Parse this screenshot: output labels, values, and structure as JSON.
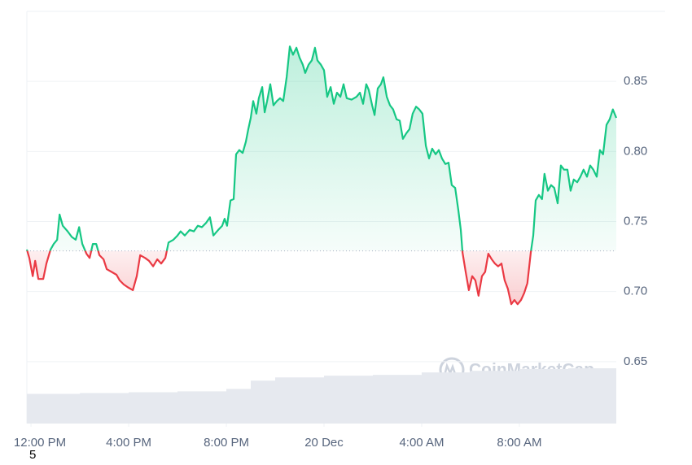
{
  "chart_data": {
    "type": "line",
    "x": [
      -0.17,
      -0.07,
      0.07,
      0.17,
      0.3,
      0.5,
      0.63,
      0.8,
      0.93,
      1.07,
      1.17,
      1.3,
      1.5,
      1.67,
      1.83,
      1.97,
      2.1,
      2.27,
      2.4,
      2.53,
      2.67,
      2.8,
      2.97,
      3.1,
      3.3,
      3.5,
      3.63,
      3.8,
      3.97,
      4.17,
      4.33,
      4.47,
      4.67,
      4.83,
      5.0,
      5.17,
      5.33,
      5.5,
      5.63,
      5.83,
      6.0,
      6.13,
      6.3,
      6.5,
      6.67,
      6.83,
      7.0,
      7.17,
      7.33,
      7.47,
      7.67,
      7.83,
      7.93,
      8.03,
      8.17,
      8.3,
      8.4,
      8.53,
      8.67,
      8.8,
      8.9,
      9.0,
      9.1,
      9.23,
      9.33,
      9.47,
      9.57,
      9.67,
      9.8,
      9.93,
      10.07,
      10.2,
      10.33,
      10.47,
      10.6,
      10.73,
      10.87,
      11.0,
      11.13,
      11.23,
      11.37,
      11.5,
      11.63,
      11.73,
      11.87,
      12.0,
      12.13,
      12.27,
      12.4,
      12.53,
      12.67,
      12.8,
      12.93,
      13.13,
      13.33,
      13.47,
      13.6,
      13.73,
      13.83,
      13.97,
      14.07,
      14.2,
      14.33,
      14.43,
      14.57,
      14.7,
      14.83,
      14.97,
      15.1,
      15.23,
      15.37,
      15.5,
      15.63,
      15.77,
      15.9,
      16.03,
      16.17,
      16.3,
      16.43,
      16.57,
      16.7,
      16.83,
      16.97,
      17.1,
      17.23,
      17.37,
      17.5,
      17.6,
      17.67,
      17.8,
      17.93,
      18.07,
      18.2,
      18.33,
      18.47,
      18.6,
      18.73,
      18.87,
      19.0,
      19.13,
      19.27,
      19.4,
      19.53,
      19.67,
      19.8,
      19.93,
      20.07,
      20.2,
      20.33,
      20.47,
      20.57,
      20.67,
      20.8,
      20.93,
      21.03,
      21.17,
      21.3,
      21.43,
      21.57,
      21.7,
      21.83,
      21.97,
      22.1,
      22.23,
      22.37,
      22.5,
      22.63,
      22.77,
      22.9,
      23.03,
      23.17,
      23.3,
      23.43,
      23.57,
      23.7,
      23.83,
      23.97
    ],
    "values": [
      0.73,
      0.724,
      0.711,
      0.722,
      0.709,
      0.709,
      0.72,
      0.73,
      0.734,
      0.737,
      0.755,
      0.747,
      0.743,
      0.739,
      0.737,
      0.746,
      0.734,
      0.727,
      0.724,
      0.734,
      0.734,
      0.726,
      0.723,
      0.716,
      0.714,
      0.712,
      0.708,
      0.705,
      0.703,
      0.701,
      0.711,
      0.726,
      0.724,
      0.722,
      0.718,
      0.723,
      0.72,
      0.724,
      0.735,
      0.737,
      0.74,
      0.743,
      0.74,
      0.744,
      0.743,
      0.747,
      0.746,
      0.749,
      0.753,
      0.74,
      0.744,
      0.747,
      0.752,
      0.747,
      0.765,
      0.766,
      0.798,
      0.801,
      0.799,
      0.807,
      0.816,
      0.824,
      0.836,
      0.827,
      0.838,
      0.846,
      0.828,
      0.836,
      0.848,
      0.833,
      0.836,
      0.838,
      0.836,
      0.853,
      0.875,
      0.869,
      0.874,
      0.867,
      0.862,
      0.856,
      0.862,
      0.865,
      0.874,
      0.865,
      0.862,
      0.858,
      0.839,
      0.846,
      0.834,
      0.842,
      0.839,
      0.848,
      0.838,
      0.837,
      0.839,
      0.842,
      0.834,
      0.848,
      0.844,
      0.833,
      0.826,
      0.845,
      0.848,
      0.853,
      0.839,
      0.833,
      0.83,
      0.823,
      0.822,
      0.809,
      0.813,
      0.816,
      0.827,
      0.832,
      0.83,
      0.827,
      0.804,
      0.795,
      0.802,
      0.798,
      0.801,
      0.795,
      0.791,
      0.792,
      0.776,
      0.774,
      0.758,
      0.744,
      0.728,
      0.714,
      0.701,
      0.711,
      0.708,
      0.697,
      0.711,
      0.714,
      0.727,
      0.723,
      0.72,
      0.718,
      0.72,
      0.708,
      0.702,
      0.691,
      0.694,
      0.691,
      0.694,
      0.699,
      0.706,
      0.728,
      0.74,
      0.765,
      0.769,
      0.766,
      0.784,
      0.772,
      0.776,
      0.774,
      0.763,
      0.79,
      0.787,
      0.787,
      0.772,
      0.78,
      0.778,
      0.782,
      0.787,
      0.782,
      0.79,
      0.787,
      0.782,
      0.801,
      0.798,
      0.819,
      0.823,
      0.83,
      0.824
    ],
    "baseline": 0.729,
    "up_color": "#16c784",
    "down_color": "#ea3943",
    "xlim": [
      -0.17,
      23.97
    ],
    "ylim": [
      0.6058,
      0.9
    ],
    "yticks": [
      0.65,
      {
        "value": 0.7,
        "label": "0.70"
      },
      0.75,
      {
        "value": 0.8,
        "label": "0.80"
      },
      0.85
    ],
    "xticks": [
      {
        "value": 0,
        "label": "12:00 PM"
      },
      {
        "value": 4,
        "label": "4:00 PM"
      },
      {
        "value": 8,
        "label": "8:00 PM"
      },
      {
        "value": 12,
        "label": "20 Dec"
      },
      {
        "value": 16,
        "label": "4:00 AM"
      },
      {
        "value": 20,
        "label": "8:00 AM"
      }
    ],
    "grid": true,
    "volume": {
      "x": [
        -0.17,
        2,
        4,
        6,
        8,
        9,
        10,
        12,
        14,
        16,
        18,
        20,
        22,
        23.97
      ],
      "values": [
        36,
        37,
        38,
        39,
        42,
        52,
        56,
        58,
        59,
        62,
        64,
        66,
        67,
        69
      ],
      "color": "#e6e9ef"
    },
    "watermark": "CoinMarketCap",
    "footnote": "5"
  }
}
